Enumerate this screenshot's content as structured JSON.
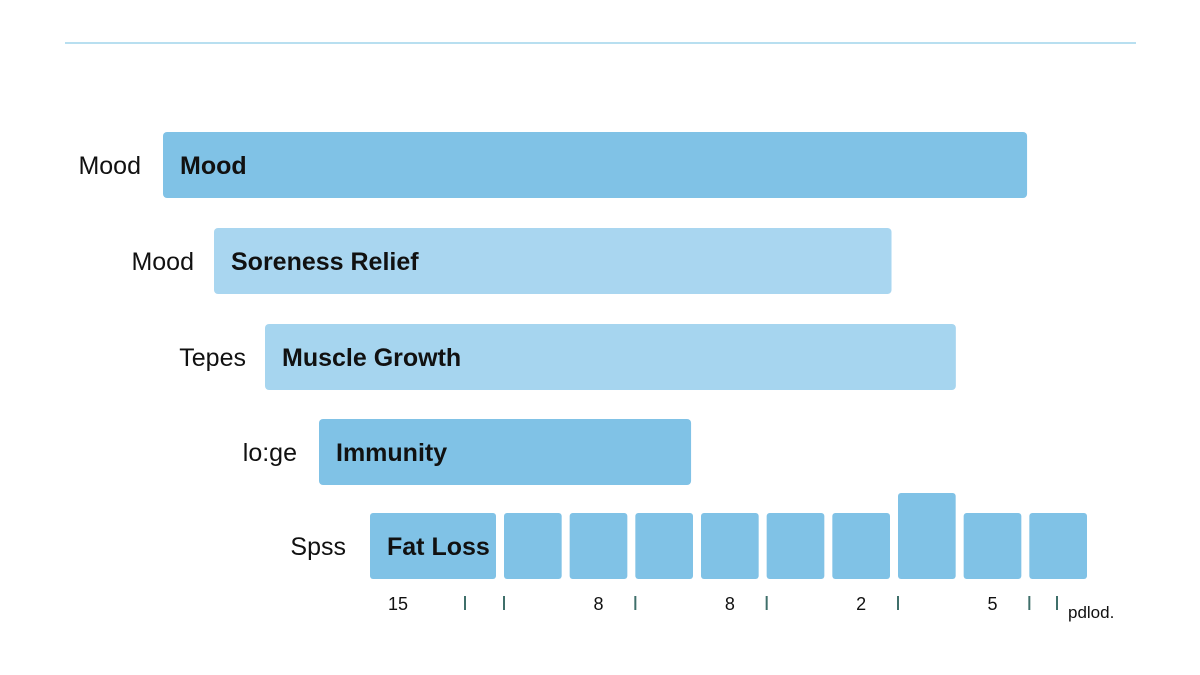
{
  "chart_data": {
    "type": "bar",
    "orientation": "horizontal",
    "colors": {
      "rule": "#b8dff0",
      "tick": "#3f6f6a",
      "bars": [
        "#80c2e6",
        "#a9d6f0",
        "#a6d5ef",
        "#80c2e6",
        "#80c2e6"
      ]
    },
    "rows": [
      {
        "left_label": "Mood",
        "bar_label": "Mood",
        "value": 0.843
      },
      {
        "left_label": "Mood",
        "bar_label": "Soreness Relief",
        "value": 0.661
      },
      {
        "left_label": "Tepes",
        "bar_label": "Muscle Growth",
        "value": 0.674
      },
      {
        "left_label": "lo:ge",
        "bar_label": "Immunity",
        "value": 0.363
      },
      {
        "left_label": "Spss",
        "bar_label": "Fat Loss",
        "value": null
      }
    ],
    "segmented_row": {
      "segments": [
        1,
        1,
        1,
        1,
        1,
        1,
        1,
        1.3,
        1,
        1
      ],
      "first_segment_wide": true
    },
    "x_tick_labels": [
      "15",
      "8",
      "8",
      "2",
      "5"
    ],
    "x_axis_note": "pdlod."
  }
}
